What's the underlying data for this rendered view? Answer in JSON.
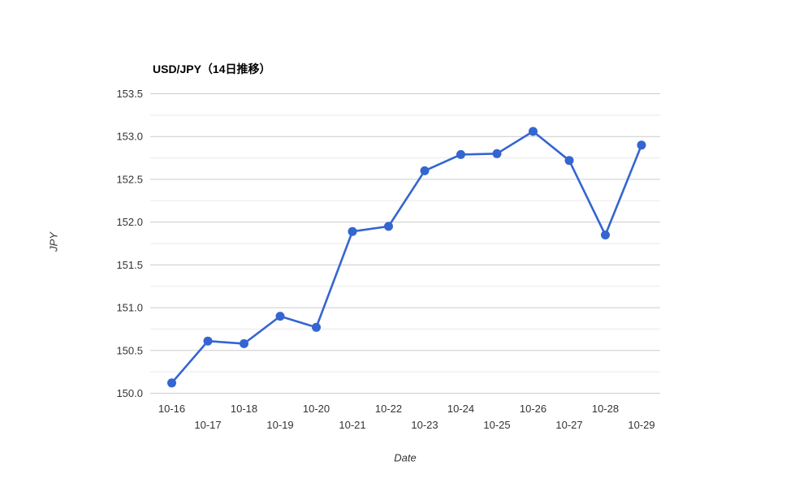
{
  "chart_data": {
    "type": "line",
    "title": "USD/JPY（14日推移）",
    "xlabel": "Date",
    "ylabel": "JPY",
    "categories": [
      "10-16",
      "10-17",
      "10-18",
      "10-19",
      "10-20",
      "10-21",
      "10-22",
      "10-23",
      "10-24",
      "10-25",
      "10-26",
      "10-27",
      "10-28",
      "10-29"
    ],
    "series": [
      {
        "name": "USD/JPY",
        "values": [
          150.12,
          150.61,
          150.58,
          150.9,
          150.77,
          151.89,
          151.95,
          152.6,
          152.79,
          152.8,
          153.06,
          152.72,
          151.85,
          152.9
        ]
      }
    ],
    "ylim": [
      150.0,
      153.5
    ],
    "ytick_major_step": 0.5,
    "ytick_minor_step": 0.25,
    "grid": true,
    "legend": false,
    "colors": {
      "line": "#3465d1",
      "marker": "#3465d1",
      "grid_major": "#cccccc",
      "grid_minor": "#e9e9e9",
      "tick_label": "#333333",
      "title": "#000000",
      "background": "#ffffff"
    }
  }
}
